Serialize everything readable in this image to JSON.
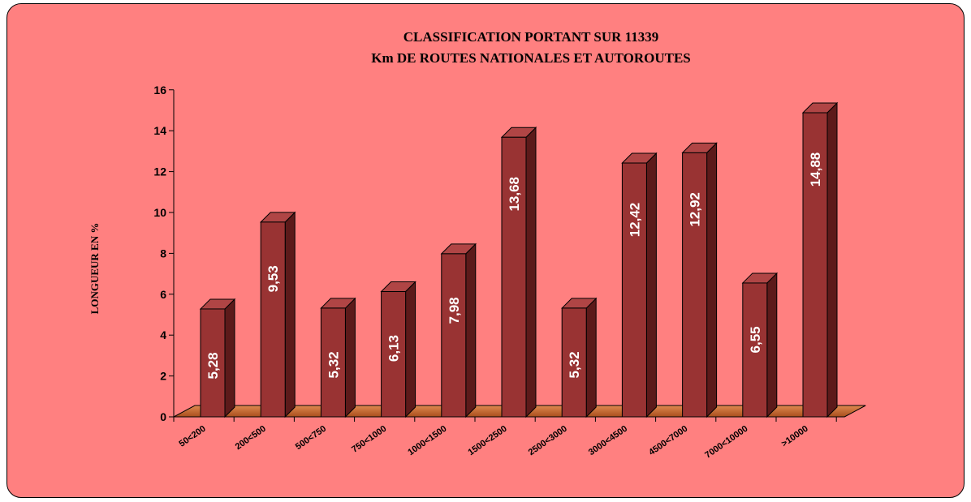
{
  "chart_data": {
    "type": "bar",
    "title": [
      "CLASSIFICATION PORTANT SUR 11339",
      "Km DE ROUTES NATIONALES ET AUTOROUTES"
    ],
    "ylabel": "LONGUEUR EN %",
    "xlabel": "",
    "categories": [
      "50<200",
      "200<500",
      "500<750",
      "750<1000",
      "1000<1500",
      "1500<2500",
      "2500<3000",
      "3000<4500",
      "4500<7000",
      "7000<10000",
      ">10000"
    ],
    "values": [
      5.28,
      9.53,
      5.32,
      6.13,
      7.98,
      13.68,
      5.32,
      12.42,
      12.92,
      6.55,
      14.88
    ],
    "value_labels": [
      "5,28",
      "9,53",
      "5,32",
      "6,13",
      "7,98",
      "13,68",
      "5,32",
      "12,42",
      "12,92",
      "6,55",
      "14,88"
    ],
    "y_ticks": [
      "0",
      "2",
      "4",
      "6",
      "8",
      "10",
      "12",
      "14",
      "16"
    ],
    "ylim": [
      0,
      16
    ],
    "grid": false,
    "legend": "none",
    "style": "3d-bars",
    "colors": {
      "background": "#ff8080",
      "bar_front": "#993333",
      "bar_side": "#5c1a1a",
      "bar_top": "#b04545",
      "floor_fill": "#c8682e",
      "value_label": "#ffffff"
    }
  }
}
